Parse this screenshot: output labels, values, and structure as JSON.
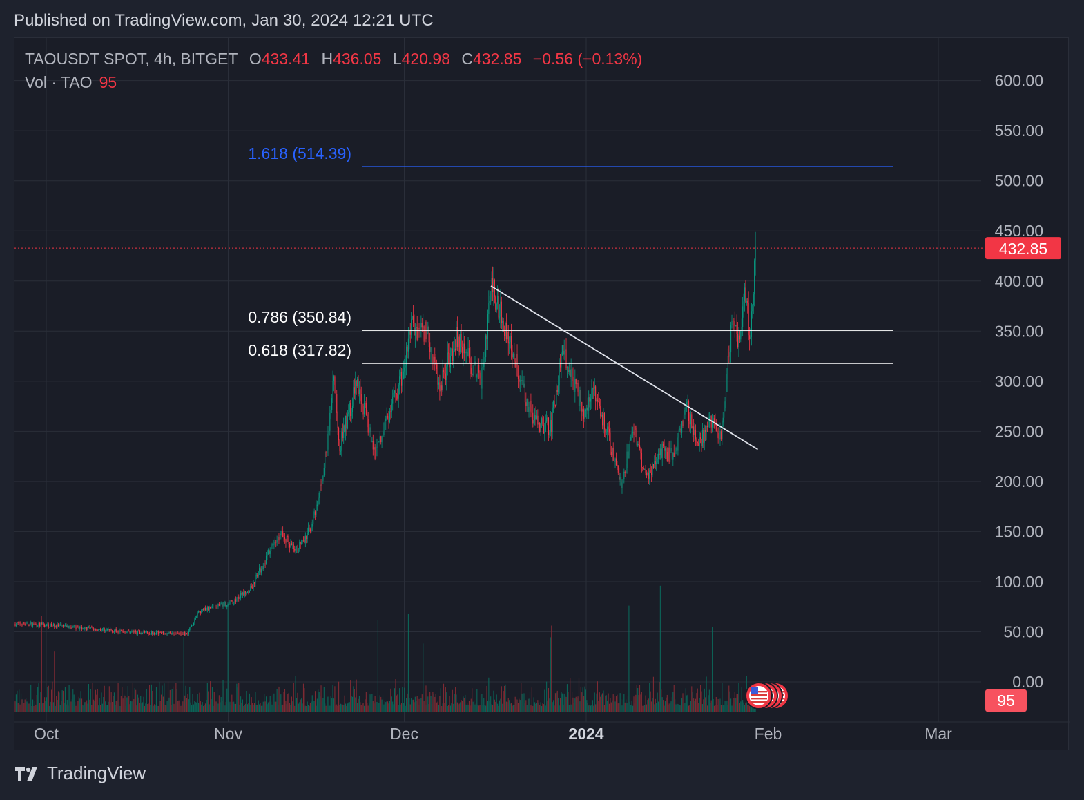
{
  "header": {
    "published": "Published on TradingView.com, Jan 30, 2024 12:21 UTC"
  },
  "legend": {
    "symbol": "TAOUSDT SPOT, 4h, BITGET",
    "o_label": "O",
    "o_value": "433.41",
    "h_label": "H",
    "h_value": "436.05",
    "l_label": "L",
    "l_value": "420.98",
    "c_label": "C",
    "c_value": "432.85",
    "change": "−0.56 (−0.13%)",
    "vol_label": "Vol · TAO",
    "vol_value": "95"
  },
  "footer": {
    "brand": "TradingView"
  },
  "colors": {
    "up": "#089981",
    "down": "#f23645",
    "fib_ext": "#2962ff",
    "fib": "#ffffff",
    "grid": "#2a2e39",
    "text": "#b2b5be"
  },
  "chart_data": {
    "type": "candlestick",
    "ylim": [
      0,
      625
    ],
    "yticks": [
      "600.00",
      "550.00",
      "500.00",
      "450.00",
      "400.00",
      "350.00",
      "300.00",
      "250.00",
      "200.00",
      "150.00",
      "100.00",
      "50.00",
      "0.00"
    ],
    "xticks": [
      "Oct",
      "Nov",
      "Dec",
      "2024",
      "Feb",
      "Mar"
    ],
    "last_price": "432.85",
    "last_volume": "95",
    "fib_levels": [
      {
        "label": "1.618 (514.39)",
        "value": 514.39,
        "color": "#2962ff"
      },
      {
        "label": "0.786 (350.84)",
        "value": 350.84,
        "color": "#ffffff"
      },
      {
        "label": "0.618 (317.82)",
        "value": 317.82,
        "color": "#ffffff"
      }
    ],
    "trendline": {
      "from": {
        "date": "2023-12-16",
        "price": 395
      },
      "to": {
        "date": "2024-01-30",
        "price": 232
      }
    },
    "price_path": [
      [
        "2023-09-27",
        58
      ],
      [
        "2023-10-05",
        55
      ],
      [
        "2023-10-15",
        50
      ],
      [
        "2023-10-25",
        48
      ],
      [
        "2023-10-27",
        70
      ],
      [
        "2023-11-02",
        80
      ],
      [
        "2023-11-05",
        95
      ],
      [
        "2023-11-08",
        130
      ],
      [
        "2023-11-10",
        148
      ],
      [
        "2023-11-12",
        135
      ],
      [
        "2023-11-14",
        140
      ],
      [
        "2023-11-16",
        170
      ],
      [
        "2023-11-18",
        240
      ],
      [
        "2023-11-19",
        310
      ],
      [
        "2023-11-20",
        235
      ],
      [
        "2023-11-23",
        300
      ],
      [
        "2023-11-26",
        230
      ],
      [
        "2023-11-29",
        275
      ],
      [
        "2023-12-01",
        310
      ],
      [
        "2023-12-02",
        355
      ],
      [
        "2023-12-05",
        350
      ],
      [
        "2023-12-07",
        295
      ],
      [
        "2023-12-10",
        345
      ],
      [
        "2023-12-14",
        300
      ],
      [
        "2023-12-16",
        395
      ],
      [
        "2023-12-20",
        320
      ],
      [
        "2023-12-23",
        260
      ],
      [
        "2023-12-26",
        255
      ],
      [
        "2023-12-28",
        330
      ],
      [
        "2024-01-01",
        265
      ],
      [
        "2024-01-02",
        300
      ],
      [
        "2024-01-05",
        240
      ],
      [
        "2024-01-07",
        197
      ],
      [
        "2024-01-09",
        255
      ],
      [
        "2024-01-11",
        205
      ],
      [
        "2024-01-14",
        230
      ],
      [
        "2024-01-16",
        225
      ],
      [
        "2024-01-18",
        278
      ],
      [
        "2024-01-20",
        232
      ],
      [
        "2024-01-22",
        262
      ],
      [
        "2024-01-24",
        240
      ],
      [
        "2024-01-26",
        370
      ],
      [
        "2024-01-27",
        335
      ],
      [
        "2024-01-28",
        385
      ],
      [
        "2024-01-29",
        345
      ],
      [
        "2024-01-30",
        436
      ]
    ]
  }
}
